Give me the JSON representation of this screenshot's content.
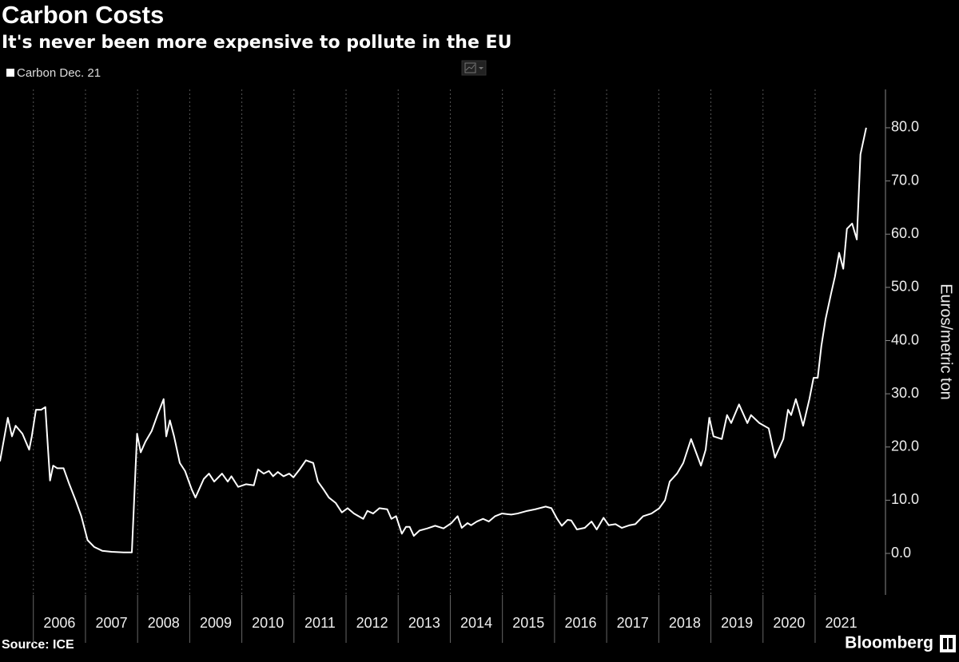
{
  "chart_data": {
    "type": "line",
    "title": "Carbon Costs",
    "subtitle": "It's never been more expensive to pollute in the EU",
    "y_label": "Euros/metric ton",
    "source": "Source: ICE",
    "brand": "Bloomberg",
    "grid": "x",
    "xlim": [
      2005.36,
      2022.35
    ],
    "ylim": [
      -7.8,
      87.2
    ],
    "xticks": [
      2006,
      2007,
      2008,
      2009,
      2010,
      2011,
      2012,
      2013,
      2014,
      2015,
      2016,
      2017,
      2018,
      2019,
      2020,
      2021
    ],
    "yticks": [
      {
        "value": 0,
        "label": "0.0"
      },
      {
        "value": 10,
        "label": "10.0"
      },
      {
        "value": 20,
        "label": "20.0"
      },
      {
        "value": 30,
        "label": "30.0"
      },
      {
        "value": 40,
        "label": "40.0"
      },
      {
        "value": 50,
        "label": "50.0"
      },
      {
        "value": 60,
        "label": "60.0"
      },
      {
        "value": 70,
        "label": "70.0"
      },
      {
        "value": 80,
        "label": "80.0"
      }
    ],
    "x": [
      2005.36,
      2005.51,
      2005.59,
      2005.66,
      2005.79,
      2005.92,
      2005.97,
      2006.05,
      2006.15,
      2006.23,
      2006.32,
      2006.38,
      2006.46,
      2006.58,
      2006.69,
      2006.81,
      2006.92,
      2007.04,
      2007.17,
      2007.32,
      2007.5,
      2007.73,
      2007.89,
      2007.99,
      2008.06,
      2008.15,
      2008.27,
      2008.38,
      2008.5,
      2008.55,
      2008.62,
      2008.7,
      2008.81,
      2008.91,
      2009.04,
      2009.11,
      2009.27,
      2009.37,
      2009.47,
      2009.62,
      2009.73,
      2009.8,
      2009.93,
      2010.08,
      2010.23,
      2010.31,
      2010.42,
      2010.52,
      2010.6,
      2010.69,
      2010.8,
      2010.91,
      2010.99,
      2011.11,
      2011.23,
      2011.37,
      2011.46,
      2011.57,
      2011.67,
      2011.8,
      2011.92,
      2012.03,
      2012.15,
      2012.33,
      2012.41,
      2012.52,
      2012.64,
      2012.79,
      2012.87,
      2012.96,
      2013.07,
      2013.15,
      2013.22,
      2013.3,
      2013.41,
      2013.56,
      2013.71,
      2013.87,
      2014.02,
      2014.14,
      2014.22,
      2014.33,
      2014.4,
      2014.51,
      2014.63,
      2014.74,
      2014.86,
      2014.99,
      2015.17,
      2015.29,
      2015.48,
      2015.63,
      2015.83,
      2015.94,
      2016.05,
      2016.14,
      2016.25,
      2016.32,
      2016.43,
      2016.58,
      2016.71,
      2016.81,
      2016.94,
      2017.04,
      2017.17,
      2017.29,
      2017.44,
      2017.55,
      2017.7,
      2017.86,
      2018.01,
      2018.12,
      2018.21,
      2018.35,
      2018.47,
      2018.62,
      2018.81,
      2018.9,
      2018.97,
      2019.05,
      2019.21,
      2019.31,
      2019.39,
      2019.54,
      2019.7,
      2019.77,
      2019.93,
      2020.11,
      2020.23,
      2020.39,
      2020.48,
      2020.54,
      2020.63,
      2020.69,
      2020.77,
      2020.89,
      2020.97,
      2021.05,
      2021.12,
      2021.2,
      2021.31,
      2021.38,
      2021.46,
      2021.54,
      2021.61,
      2021.71,
      2021.8,
      2021.87,
      2021.98
    ],
    "series": [
      {
        "name": "Carbon Dec. 21",
        "color": "#ffffff",
        "values": [
          17.3,
          25.5,
          22,
          24,
          22.5,
          19.5,
          22,
          27,
          27,
          27.5,
          13.7,
          16.5,
          16,
          16,
          13,
          10,
          7,
          2.5,
          1.2,
          0.5,
          0.3,
          0.2,
          0.2,
          22.5,
          19,
          21,
          23,
          26,
          29,
          22,
          25,
          22,
          17,
          15.5,
          12,
          10.5,
          14,
          15,
          13.5,
          15,
          13.5,
          14.5,
          12.5,
          13,
          12.8,
          15.8,
          15,
          15.5,
          14.5,
          15.3,
          14.5,
          15,
          14.3,
          15.8,
          17.5,
          17,
          13.5,
          12,
          10.5,
          9.5,
          7.7,
          8.5,
          7.5,
          6.5,
          8,
          7.5,
          8.5,
          8.3,
          6.5,
          7,
          3.7,
          5,
          5,
          3.3,
          4.3,
          4.7,
          5.2,
          4.7,
          5.7,
          7,
          4.8,
          5.7,
          5.3,
          6,
          6.5,
          6,
          7,
          7.5,
          7.3,
          7.5,
          8,
          8.3,
          8.8,
          8.5,
          6.5,
          5.2,
          6.3,
          6.2,
          4.5,
          4.8,
          6,
          4.5,
          6.7,
          5.3,
          5.5,
          4.8,
          5.3,
          5.5,
          7,
          7.5,
          8.5,
          10,
          13.5,
          15,
          17,
          21.5,
          16.5,
          19.5,
          25.5,
          22,
          21.5,
          26,
          24.5,
          28,
          24.5,
          26,
          24.5,
          23.5,
          18,
          21.5,
          27,
          26,
          29,
          27,
          24,
          29,
          33,
          33,
          39,
          44,
          49,
          52,
          56.5,
          53.5,
          61,
          62,
          59,
          75,
          80
        ]
      }
    ]
  }
}
